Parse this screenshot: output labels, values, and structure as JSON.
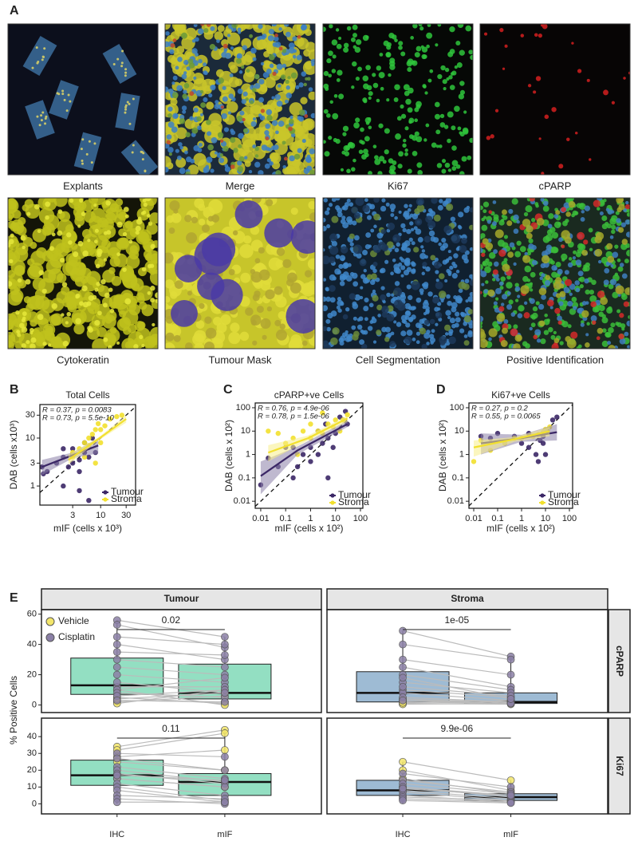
{
  "panel_a": {
    "label": "A",
    "images": [
      "Explants",
      "Merge",
      "Ki67",
      "cPARP",
      "Cytokeratin",
      "Tumour Mask",
      "Cell Segmentation",
      "Positive Identification"
    ]
  },
  "chart_data": [
    {
      "type": "scatter",
      "panel": "B",
      "title": "Total Cells",
      "x_label": "mIF (cells x 10³)",
      "y_label": "DAB (cells x10³)",
      "log_scale": true,
      "xlim": [
        0.73,
        45
      ],
      "ylim": [
        0.4,
        50
      ],
      "xticks": [
        3,
        10,
        30
      ],
      "yticks": [
        1,
        3,
        10,
        30
      ],
      "legend": "lower right",
      "annotations": [
        "R = 0.37, p = 0.0083",
        "R = 0.73, p = 5.5e-10"
      ],
      "series": [
        {
          "name": "Tumour",
          "color": "#3b2766",
          "band_color": "#8a80a8",
          "x": [
            0.8,
            0.85,
            1,
            1.5,
            2,
            2,
            2.5,
            3,
            3,
            4,
            4,
            5,
            5,
            6,
            7,
            8,
            4,
            6,
            2,
            3
          ],
          "values": [
            2.5,
            1.8,
            2,
            3,
            4,
            1,
            2.5,
            3,
            6,
            3.5,
            2,
            5,
            8,
            4,
            10,
            5,
            0.8,
            0.5,
            6,
            4.5
          ],
          "trend": {
            "x": [
              0.8,
              3,
              9
            ],
            "y": [
              2.5,
              4.4,
              7
            ],
            "low": [
              1.7,
              3.8,
              4.8
            ],
            "high": [
              3.5,
              5,
              10
            ]
          }
        },
        {
          "name": "Stroma",
          "color": "#f2e02e",
          "band_color": "#f7ef8a",
          "x": [
            3,
            4,
            5,
            6,
            7,
            8,
            9,
            10,
            12,
            15,
            20,
            10,
            6,
            8,
            3,
            25,
            5
          ],
          "values": [
            5,
            6,
            8,
            10,
            12,
            15,
            20,
            15,
            18,
            25,
            28,
            8,
            7,
            3,
            4,
            30,
            4
          ],
          "trend": {
            "x": [
              2.5,
              9,
              30
            ],
            "y": [
              3.5,
              9.5,
              25
            ],
            "low": [
              2.8,
              8.8,
              21
            ],
            "high": [
              4.5,
              10.2,
              30
            ]
          }
        }
      ]
    },
    {
      "type": "scatter",
      "panel": "C",
      "title": "cPARP+ve Cells",
      "x_label": "mIF (cells x 10²)",
      "y_label": "DAB (cells x 10²)",
      "log_scale": true,
      "xlim": [
        0.006,
        125
      ],
      "ylim": [
        0.005,
        160
      ],
      "xticks": [
        0.01,
        0.1,
        1,
        10,
        100
      ],
      "yticks": [
        0.01,
        0.1,
        1,
        10,
        100
      ],
      "legend": "lower right",
      "annotations": [
        "R = 0.76, p = 4.9e-06",
        "R = 0.78, p = 1.5e-06"
      ],
      "series": [
        {
          "name": "Tumour",
          "color": "#3b2766",
          "band_color": "#8a80a8",
          "x": [
            0.01,
            0.02,
            0.05,
            0.1,
            0.2,
            0.3,
            0.5,
            1,
            1,
            2,
            2,
            3,
            5,
            5,
            8,
            10,
            15,
            20,
            30,
            25,
            4,
            0.2
          ],
          "values": [
            0.05,
            0.7,
            0.3,
            2,
            0.1,
            0.3,
            1,
            0.5,
            2,
            1,
            10,
            3,
            5,
            0.1,
            2,
            8,
            40,
            30,
            20,
            70,
            20,
            2
          ],
          "trend": {
            "x": [
              0.01,
              0.3,
              30
            ],
            "y": [
              0.12,
              1.5,
              20
            ],
            "low": [
              0.02,
              1,
              15
            ],
            "high": [
              0.5,
              2.2,
              28
            ]
          }
        },
        {
          "name": "Stroma",
          "color": "#f2e02e",
          "band_color": "#f7ef8a",
          "x": [
            0.02,
            0.05,
            0.1,
            0.2,
            0.5,
            1,
            1,
            2,
            3,
            5,
            8,
            10,
            20,
            30,
            0.3,
            3,
            15
          ],
          "values": [
            10,
            8,
            3,
            5,
            10,
            5,
            20,
            10,
            8,
            20,
            15,
            30,
            30,
            50,
            1,
            60,
            10
          ],
          "trend": {
            "x": [
              0.02,
              0.8,
              30
            ],
            "y": [
              1.2,
              5,
              35
            ],
            "low": [
              0.5,
              4,
              25
            ],
            "high": [
              2.5,
              6.5,
              45
            ]
          }
        }
      ]
    },
    {
      "type": "scatter",
      "panel": "D",
      "title": "Ki67+ve Cells",
      "x_label": "mIF (cells x 10²)",
      "y_label": "DAB (cells x 10²)",
      "log_scale": true,
      "xlim": [
        0.0063,
        136
      ],
      "ylim": [
        0.005,
        160
      ],
      "xticks": [
        0.01,
        0.1,
        1,
        10,
        100
      ],
      "yticks": [
        0.01,
        0.1,
        1,
        10,
        100
      ],
      "legend": "lower right",
      "annotations": [
        "R = 0.27, p = 0.2",
        "R = 0.55, p = 0.0065"
      ],
      "series": [
        {
          "name": "Tumour",
          "color": "#3b2766",
          "band_color": "#8a80a8",
          "x": [
            0.02,
            0.05,
            0.1,
            0.5,
            1,
            2,
            3,
            4,
            5,
            6,
            8,
            10,
            12,
            20,
            30,
            2,
            8
          ],
          "values": [
            6,
            5,
            8,
            6,
            3,
            2,
            6,
            1,
            0.5,
            4,
            3,
            1,
            10,
            30,
            40,
            8,
            6
          ],
          "trend": {
            "x": [
              0.02,
              1,
              30
            ],
            "y": [
              3,
              5,
              9
            ],
            "low": [
              1,
              3.5,
              4
            ],
            "high": [
              8,
              7,
              20
            ]
          }
        },
        {
          "name": "Stroma",
          "color": "#f2e02e",
          "band_color": "#f7ef8a",
          "x": [
            0.01,
            0.02,
            0.05,
            0.2,
            0.5,
            1,
            3,
            5,
            8,
            10,
            15
          ],
          "values": [
            0.5,
            4,
            1.5,
            3,
            5,
            5,
            6,
            7,
            9,
            12,
            15
          ],
          "trend": {
            "x": [
              0.01,
              0.5,
              15
            ],
            "y": [
              2,
              4.5,
              10
            ],
            "low": [
              0.8,
              3.5,
              6
            ],
            "high": [
              4,
              5.5,
              15
            ]
          }
        }
      ]
    },
    {
      "type": "box_facets",
      "panel": "E",
      "y_label": "% Positive Cells",
      "legend": [
        {
          "name": "Vehicle",
          "color": "#f3e66a"
        },
        {
          "name": "Cisplatin",
          "color": "#8b80a6"
        }
      ],
      "categories": [
        "IHC",
        "mIF"
      ],
      "columns": [
        {
          "name": "Tumour",
          "color": "#93dfc2"
        },
        {
          "name": "Stroma",
          "color": "#9ebbd4"
        }
      ],
      "rows": [
        {
          "name": "cPARP",
          "ylim": [
            -5,
            63
          ],
          "yticks": [
            0,
            20,
            40,
            60
          ]
        },
        {
          "name": "Ki67",
          "ylim": [
            -6,
            51
          ],
          "yticks": [
            0,
            10,
            20,
            30,
            40
          ]
        }
      ],
      "panels": [
        {
          "p_label": "0.02",
          "boxes": [
            {
              "low": 0,
              "q1": 7,
              "median": 13,
              "q3": 31,
              "high": 56
            },
            {
              "low": 0,
              "q1": 4,
              "median": 8,
              "q3": 27,
              "high": 45
            }
          ],
          "vehicle": [
            [
              2,
              6
            ],
            [
              3,
              2
            ],
            [
              5,
              1
            ],
            [
              10,
              0
            ],
            [
              1,
              10
            ],
            [
              4,
              8
            ]
          ],
          "cisplatin": [
            [
              56,
              45
            ],
            [
              53,
              38
            ],
            [
              45,
              40
            ],
            [
              40,
              30
            ],
            [
              35,
              33
            ],
            [
              30,
              25
            ],
            [
              25,
              20
            ],
            [
              20,
              15
            ],
            [
              12,
              12
            ],
            [
              10,
              18
            ],
            [
              8,
              5
            ],
            [
              6,
              10
            ],
            [
              3,
              2
            ],
            [
              15,
              8
            ]
          ]
        },
        {
          "p_label": "1e-05",
          "boxes": [
            {
              "low": 0,
              "q1": 2,
              "median": 8,
              "q3": 22,
              "high": 49
            },
            {
              "low": 0,
              "q1": 1,
              "median": 2,
              "q3": 8,
              "high": 32
            }
          ],
          "vehicle": [
            [
              1,
              0.5
            ],
            [
              2,
              1
            ],
            [
              3,
              2
            ],
            [
              0.5,
              1
            ],
            [
              4,
              1.5
            ],
            [
              1.5,
              3
            ]
          ],
          "cisplatin": [
            [
              49,
              32
            ],
            [
              40,
              30
            ],
            [
              30,
              20
            ],
            [
              25,
              12
            ],
            [
              20,
              10
            ],
            [
              15,
              8
            ],
            [
              10,
              5
            ],
            [
              8,
              3
            ],
            [
              5,
              2
            ],
            [
              3,
              1
            ],
            [
              12,
              6
            ],
            [
              18,
              4
            ]
          ]
        },
        {
          "p_label": "0.11",
          "boxes": [
            {
              "low": 0,
              "q1": 11,
              "median": 17,
              "q3": 26,
              "high": 34
            },
            {
              "low": 0,
              "q1": 5,
              "median": 13,
              "q3": 18,
              "high": 45
            }
          ],
          "vehicle": [
            [
              34,
              44
            ],
            [
              32,
              42
            ],
            [
              28,
              32
            ],
            [
              25,
              20
            ],
            [
              15,
              10
            ]
          ],
          "cisplatin": [
            [
              30,
              28
            ],
            [
              27,
              20
            ],
            [
              22,
              15
            ],
            [
              20,
              13
            ],
            [
              18,
              12
            ],
            [
              15,
              10
            ],
            [
              12,
              5
            ],
            [
              10,
              2
            ],
            [
              8,
              1
            ],
            [
              5,
              3
            ],
            [
              3,
              0
            ],
            [
              1,
              1
            ],
            [
              17,
              14
            ]
          ]
        },
        {
          "p_label": "9.9e-06",
          "boxes": [
            {
              "low": 0,
              "q1": 5,
              "median": 8,
              "q3": 14,
              "high": 25
            },
            {
              "low": 0,
              "q1": 2,
              "median": 4,
              "q3": 6,
              "high": 14
            }
          ],
          "vehicle": [
            [
              25,
              14
            ],
            [
              20,
              8
            ],
            [
              15,
              6
            ],
            [
              10,
              5
            ]
          ],
          "cisplatin": [
            [
              18,
              10
            ],
            [
              14,
              7
            ],
            [
              12,
              6
            ],
            [
              10,
              4
            ],
            [
              8,
              3
            ],
            [
              7,
              2
            ],
            [
              5,
              1
            ],
            [
              4,
              2
            ],
            [
              3,
              1
            ],
            [
              2,
              0.5
            ],
            [
              9,
              5
            ]
          ]
        }
      ]
    }
  ]
}
